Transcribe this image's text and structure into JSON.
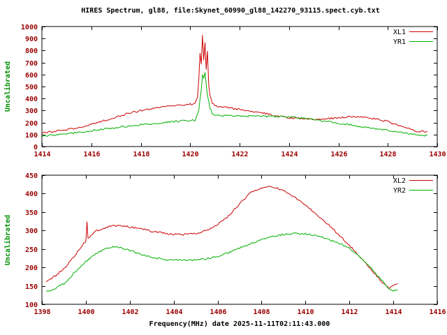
{
  "figure": {
    "title": "HIRES Spectrum, gl88, file:Skynet_60990_gl88_142270_93115.spect.cyb.txt",
    "xlabel": "Frequency(MHz) date 2025-11-11T02:11:43.000"
  },
  "colors": {
    "background": "#ffffff",
    "axis": "#000000",
    "tick_text": "#990000",
    "ylabel_text": "#009000",
    "title_text": "#000000",
    "legend_text": "#000000",
    "series_red": "#cc0000",
    "series_green": "#00b000"
  },
  "chart_data": [
    {
      "type": "line",
      "title": "",
      "ylabel": "Uncalibrated",
      "xlim": [
        1414,
        1430
      ],
      "ylim": [
        0,
        1000
      ],
      "xticks": [
        1414,
        1416,
        1418,
        1420,
        1422,
        1424,
        1426,
        1428,
        1430
      ],
      "yticks": [
        0,
        100,
        200,
        300,
        400,
        500,
        600,
        700,
        800,
        900,
        1000
      ],
      "grid": false,
      "legend_position": "top-right",
      "series": [
        {
          "name": "XL1",
          "color": "#cc0000",
          "x": [
            1414.0,
            1414.5,
            1415.0,
            1415.5,
            1416.0,
            1416.5,
            1417.0,
            1417.5,
            1418.0,
            1418.5,
            1419.0,
            1419.5,
            1420.0,
            1420.2,
            1420.3,
            1420.35,
            1420.4,
            1420.45,
            1420.5,
            1420.55,
            1420.6,
            1420.65,
            1420.7,
            1420.75,
            1420.8,
            1420.9,
            1421.0,
            1421.5,
            1422.0,
            1422.5,
            1423.0,
            1423.5,
            1424.0,
            1424.5,
            1425.0,
            1425.5,
            1426.0,
            1426.5,
            1427.0,
            1427.5,
            1428.0,
            1428.5,
            1429.0,
            1429.3,
            1429.6
          ],
          "y": [
            115,
            125,
            140,
            160,
            185,
            215,
            245,
            275,
            300,
            320,
            335,
            345,
            352,
            356,
            420,
            560,
            780,
            690,
            930,
            720,
            860,
            640,
            790,
            520,
            430,
            365,
            340,
            325,
            308,
            294,
            276,
            256,
            240,
            232,
            228,
            232,
            240,
            248,
            245,
            232,
            208,
            172,
            138,
            122,
            128
          ]
        },
        {
          "name": "YR1",
          "color": "#00b000",
          "x": [
            1414.0,
            1414.5,
            1415.0,
            1415.5,
            1416.0,
            1416.5,
            1417.0,
            1417.5,
            1418.0,
            1418.5,
            1419.0,
            1419.5,
            1420.0,
            1420.2,
            1420.35,
            1420.45,
            1420.5,
            1420.55,
            1420.6,
            1420.7,
            1420.8,
            1420.9,
            1421.0,
            1421.5,
            1422.0,
            1422.5,
            1423.0,
            1423.5,
            1424.0,
            1424.5,
            1425.0,
            1425.5,
            1426.0,
            1426.5,
            1427.0,
            1427.5,
            1428.0,
            1428.5,
            1429.0,
            1429.6
          ],
          "y": [
            88,
            96,
            106,
            118,
            132,
            145,
            158,
            170,
            181,
            192,
            202,
            210,
            216,
            220,
            300,
            480,
            600,
            570,
            620,
            430,
            320,
            275,
            260,
            256,
            254,
            253,
            252,
            250,
            247,
            238,
            225,
            210,
            195,
            180,
            165,
            150,
            135,
            117,
            100,
            90
          ]
        }
      ]
    },
    {
      "type": "line",
      "title": "",
      "ylabel": "Uncalibrated",
      "xlim": [
        1398,
        1416
      ],
      "ylim": [
        100,
        450
      ],
      "xticks": [
        1398,
        1400,
        1402,
        1404,
        1406,
        1408,
        1410,
        1412,
        1414,
        1416
      ],
      "yticks": [
        100,
        150,
        200,
        250,
        300,
        350,
        400,
        450
      ],
      "grid": false,
      "legend_position": "top-right",
      "series": [
        {
          "name": "XL2",
          "color": "#cc0000",
          "x": [
            1398.2,
            1398.5,
            1399.0,
            1399.5,
            1399.9,
            1400.0,
            1400.05,
            1400.1,
            1400.5,
            1401.0,
            1401.5,
            1402.0,
            1402.5,
            1403.0,
            1403.5,
            1404.0,
            1404.5,
            1405.0,
            1405.5,
            1406.0,
            1406.5,
            1407.0,
            1407.5,
            1408.0,
            1408.3,
            1408.6,
            1409.0,
            1409.5,
            1410.0,
            1410.5,
            1411.0,
            1411.5,
            1412.0,
            1412.5,
            1413.0,
            1413.5,
            1413.8,
            1414.0,
            1414.2
          ],
          "y": [
            160,
            172,
            196,
            232,
            265,
            270,
            322,
            280,
            300,
            310,
            313,
            310,
            305,
            298,
            293,
            290,
            289,
            292,
            300,
            315,
            340,
            372,
            402,
            416,
            420,
            417,
            408,
            391,
            368,
            344,
            318,
            290,
            260,
            228,
            194,
            160,
            144,
            150,
            156
          ]
        },
        {
          "name": "YR2",
          "color": "#00b000",
          "x": [
            1398.2,
            1398.5,
            1399.0,
            1399.5,
            1400.0,
            1400.5,
            1401.0,
            1401.3,
            1401.6,
            1402.0,
            1402.5,
            1403.0,
            1403.5,
            1404.0,
            1404.5,
            1405.0,
            1405.5,
            1406.0,
            1406.5,
            1407.0,
            1407.5,
            1408.0,
            1408.5,
            1409.0,
            1409.5,
            1410.0,
            1410.5,
            1411.0,
            1411.5,
            1412.0,
            1412.5,
            1413.0,
            1413.5,
            1413.8,
            1414.0,
            1414.2
          ],
          "y": [
            135,
            140,
            156,
            186,
            216,
            240,
            253,
            256,
            253,
            246,
            236,
            228,
            222,
            220,
            219,
            220,
            224,
            230,
            240,
            252,
            264,
            275,
            283,
            289,
            292,
            291,
            286,
            277,
            267,
            251,
            227,
            197,
            163,
            141,
            136,
            139
          ]
        }
      ]
    }
  ]
}
